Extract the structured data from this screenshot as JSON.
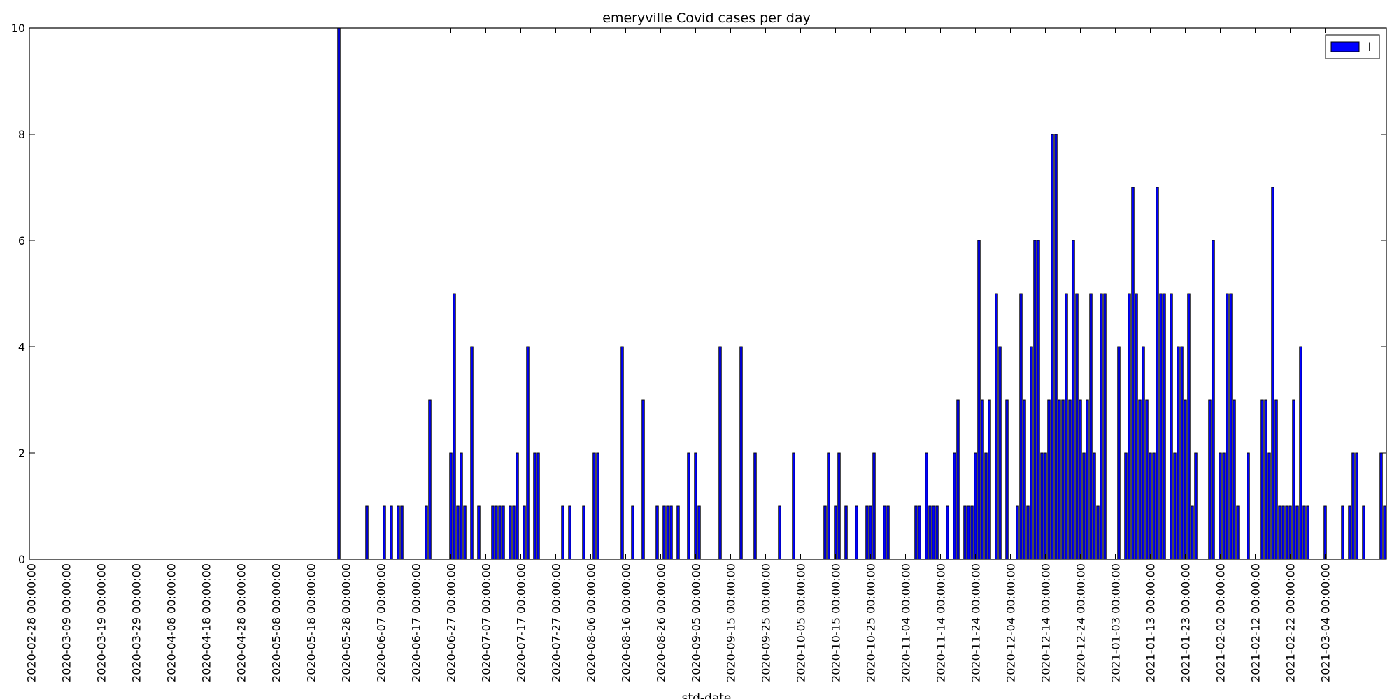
{
  "chart_data": {
    "type": "bar",
    "title": "emeryville Covid cases per day",
    "xlabel": "std-date",
    "ylabel": "",
    "ylim": [
      0,
      10
    ],
    "yticks": [
      "0",
      "2",
      "4",
      "6",
      "8",
      "10"
    ],
    "grid": false,
    "legend_position": "top-right",
    "series": [
      {
        "name": "I",
        "color": "#0000ff",
        "edge_color": "#000000",
        "start_date": "2020-02-28",
        "values": [
          0,
          0,
          0,
          0,
          0,
          0,
          0,
          0,
          0,
          0,
          0,
          0,
          0,
          0,
          0,
          0,
          0,
          0,
          0,
          0,
          0,
          0,
          0,
          0,
          0,
          0,
          0,
          0,
          0,
          0,
          0,
          0,
          0,
          0,
          0,
          0,
          0,
          0,
          0,
          0,
          0,
          0,
          0,
          0,
          0,
          0,
          0,
          0,
          0,
          0,
          0,
          0,
          0,
          0,
          0,
          0,
          0,
          0,
          0,
          0,
          0,
          0,
          0,
          0,
          0,
          0,
          0,
          0,
          0,
          0,
          0,
          0,
          0,
          0,
          0,
          0,
          0,
          0,
          0,
          0,
          0,
          0,
          0,
          0,
          0,
          0,
          0,
          0,
          10,
          0,
          0,
          0,
          0,
          0,
          0,
          0,
          1,
          0,
          0,
          0,
          0,
          1,
          0,
          1,
          0,
          1,
          1,
          0,
          0,
          0,
          0,
          0,
          0,
          1,
          3,
          0,
          0,
          0,
          0,
          0,
          2,
          5,
          1,
          2,
          1,
          0,
          4,
          0,
          1,
          0,
          0,
          0,
          1,
          1,
          1,
          1,
          0,
          1,
          1,
          2,
          0,
          1,
          4,
          0,
          2,
          2,
          0,
          0,
          0,
          0,
          0,
          0,
          1,
          0,
          1,
          0,
          0,
          0,
          1,
          0,
          0,
          2,
          2,
          0,
          0,
          0,
          0,
          0,
          0,
          4,
          0,
          0,
          1,
          0,
          0,
          3,
          0,
          0,
          0,
          1,
          0,
          1,
          1,
          1,
          0,
          1,
          0,
          0,
          2,
          0,
          2,
          1,
          0,
          0,
          0,
          0,
          0,
          4,
          0,
          0,
          0,
          0,
          0,
          4,
          0,
          0,
          0,
          2,
          0,
          0,
          0,
          0,
          0,
          0,
          1,
          0,
          0,
          0,
          2,
          0,
          0,
          0,
          0,
          0,
          0,
          0,
          0,
          1,
          2,
          0,
          1,
          2,
          0,
          1,
          0,
          0,
          1,
          0,
          0,
          1,
          1,
          2,
          0,
          0,
          1,
          1,
          0,
          0,
          0,
          0,
          0,
          0,
          0,
          1,
          1,
          0,
          2,
          1,
          1,
          1,
          0,
          0,
          1,
          0,
          2,
          3,
          0,
          1,
          1,
          1,
          2,
          6,
          3,
          2,
          3,
          0,
          5,
          4,
          0,
          3,
          0,
          0,
          1,
          5,
          3,
          1,
          4,
          6,
          6,
          2,
          2,
          3,
          8,
          8,
          3,
          3,
          5,
          3,
          6,
          5,
          3,
          2,
          3,
          5,
          2,
          1,
          5,
          5,
          0,
          0,
          0,
          4,
          0,
          2,
          5,
          7,
          5,
          3,
          4,
          3,
          2,
          2,
          7,
          5,
          5,
          0,
          5,
          2,
          4,
          4,
          3,
          5,
          1,
          2,
          0,
          0,
          0,
          3,
          6,
          0,
          2,
          2,
          5,
          5,
          3,
          1,
          0,
          0,
          2,
          0,
          0,
          0,
          3,
          3,
          2,
          7,
          3,
          1,
          1,
          1,
          1,
          3,
          1,
          4,
          1,
          1,
          0,
          0,
          0,
          0,
          1,
          0,
          0,
          0,
          0,
          1,
          0,
          1,
          2,
          2,
          0,
          1,
          0,
          0,
          0,
          0,
          2,
          1
        ]
      }
    ],
    "x_tick_labels": [
      "2020-02-28 00:00:00",
      "2020-03-09 00:00:00",
      "2020-03-19 00:00:00",
      "2020-03-29 00:00:00",
      "2020-04-08 00:00:00",
      "2020-04-18 00:00:00",
      "2020-04-28 00:00:00",
      "2020-05-08 00:00:00",
      "2020-05-18 00:00:00",
      "2020-05-28 00:00:00",
      "2020-06-07 00:00:00",
      "2020-06-17 00:00:00",
      "2020-06-27 00:00:00",
      "2020-07-07 00:00:00",
      "2020-07-17 00:00:00",
      "2020-07-27 00:00:00",
      "2020-08-06 00:00:00",
      "2020-08-16 00:00:00",
      "2020-08-26 00:00:00",
      "2020-09-05 00:00:00",
      "2020-09-15 00:00:00",
      "2020-09-25 00:00:00",
      "2020-10-05 00:00:00",
      "2020-10-15 00:00:00",
      "2020-10-25 00:00:00",
      "2020-11-04 00:00:00",
      "2020-11-14 00:00:00",
      "2020-11-24 00:00:00",
      "2020-12-04 00:00:00",
      "2020-12-14 00:00:00",
      "2020-12-24 00:00:00",
      "2021-01-03 00:00:00",
      "2021-01-13 00:00:00",
      "2021-01-23 00:00:00",
      "2021-02-02 00:00:00",
      "2021-02-12 00:00:00",
      "2021-02-22 00:00:00",
      "2021-03-04 00:00:00"
    ]
  }
}
